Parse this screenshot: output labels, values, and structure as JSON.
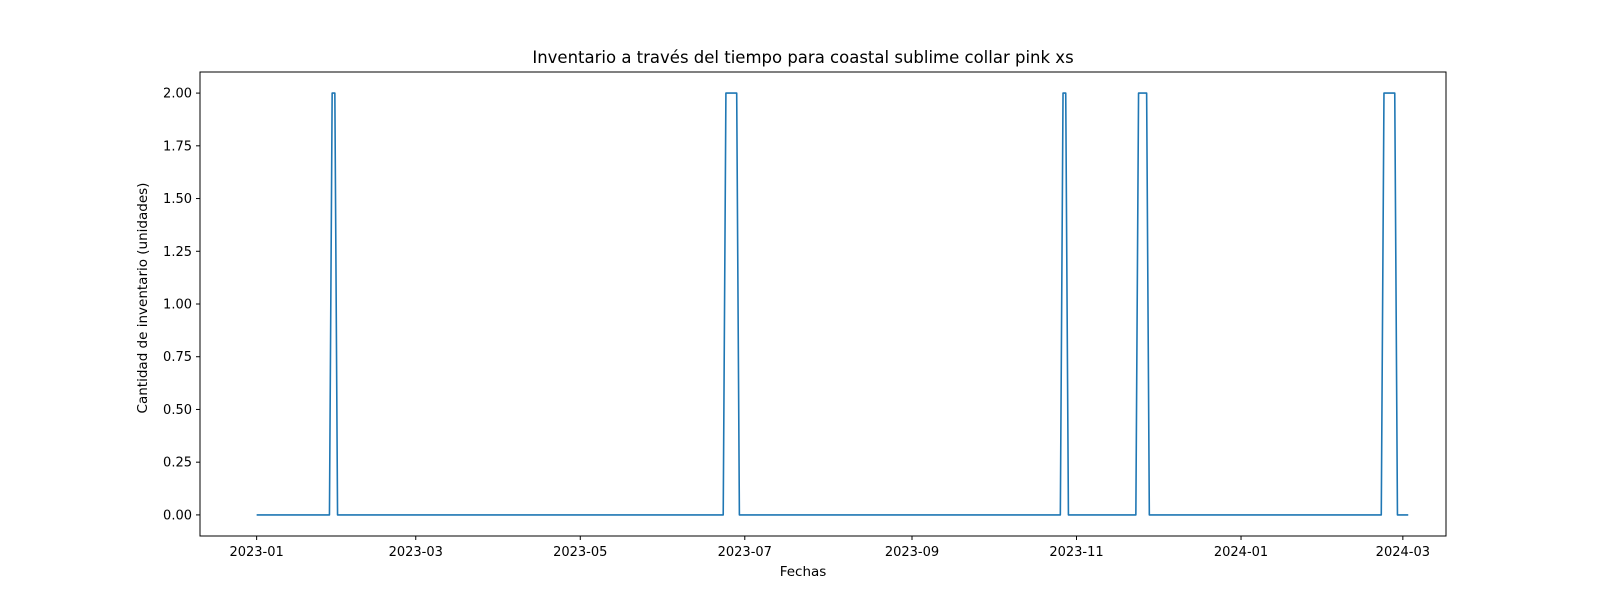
{
  "chart_data": {
    "type": "line",
    "title": "Inventario a través del tiempo para coastal sublime collar pink xs",
    "xlabel": "Fechas",
    "ylabel": "Cantidad de inventario (unidades)",
    "x_type": "date",
    "xlim": [
      "2022-12-11",
      "2024-03-17"
    ],
    "ylim": [
      -0.1,
      2.1
    ],
    "x_ticks": [
      "2023-01",
      "2023-03",
      "2023-05",
      "2023-07",
      "2023-09",
      "2023-11",
      "2024-01",
      "2024-03"
    ],
    "y_ticks": [
      0.0,
      0.25,
      0.5,
      0.75,
      1.0,
      1.25,
      1.5,
      1.75,
      2.0
    ],
    "y_tick_labels": [
      "0.00",
      "0.25",
      "0.50",
      "0.75",
      "1.00",
      "1.25",
      "1.50",
      "1.75",
      "2.00"
    ],
    "grid": false,
    "series": [
      {
        "color": "#1f77b4",
        "x": [
          "2023-01-01",
          "2023-01-28",
          "2023-01-29",
          "2023-01-30",
          "2023-01-31",
          "2023-06-23",
          "2023-06-24",
          "2023-06-28",
          "2023-06-29",
          "2023-10-26",
          "2023-10-27",
          "2023-10-28",
          "2023-10-29",
          "2023-11-23",
          "2023-11-24",
          "2023-11-27",
          "2023-11-28",
          "2024-02-22",
          "2024-02-23",
          "2024-02-27",
          "2024-02-28",
          "2024-03-03"
        ],
        "y": [
          0,
          0,
          2,
          2,
          0,
          0,
          2,
          2,
          0,
          0,
          2,
          2,
          0,
          0,
          2,
          2,
          0,
          0,
          2,
          2,
          0,
          0
        ]
      }
    ]
  }
}
